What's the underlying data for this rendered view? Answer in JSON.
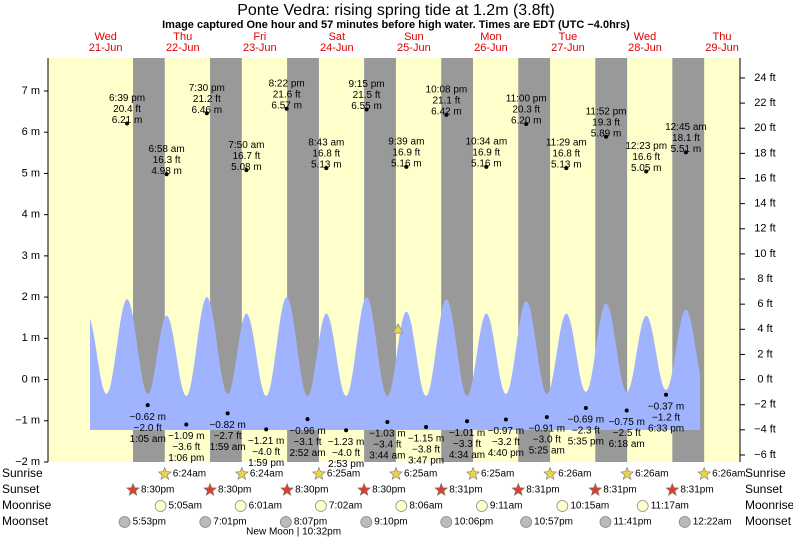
{
  "header": {
    "title": "Ponte Vedra: rising  spring tide at 1.2m (3.8ft)",
    "subtitle": "Image captured One hour and 57 minutes before high water. Times are EDT (UTC −4.0hrs)"
  },
  "chart_data": {
    "type": "tide",
    "ylim": [
      -2,
      7.8
    ],
    "yticks": [
      {
        "value": -2,
        "label": "−2 m"
      },
      {
        "value": -1,
        "label": "−1 m"
      },
      {
        "value": 0,
        "label": "0 m"
      },
      {
        "value": 1,
        "label": "1 m"
      },
      {
        "value": 2,
        "label": "2 m"
      },
      {
        "value": 3,
        "label": "3 m"
      },
      {
        "value": 4,
        "label": "4 m"
      },
      {
        "value": 5,
        "label": "5 m"
      },
      {
        "value": 6,
        "label": "6 m"
      },
      {
        "value": 7,
        "label": "7 m"
      }
    ],
    "y2lim": [
      -6.56,
      25.59
    ],
    "y2ticks": [
      {
        "value": -6,
        "label": "−6 ft"
      },
      {
        "value": -4,
        "label": "−4 ft"
      },
      {
        "value": -2,
        "label": "−2 ft"
      },
      {
        "value": 0,
        "label": "0 ft"
      },
      {
        "value": 2,
        "label": "2 ft"
      },
      {
        "value": 4,
        "label": "4 ft"
      },
      {
        "value": 6,
        "label": "6 ft"
      },
      {
        "value": 8,
        "label": "8 ft"
      },
      {
        "value": 10,
        "label": "10 ft"
      },
      {
        "value": 12,
        "label": "12 ft"
      },
      {
        "value": 14,
        "label": "14 ft"
      },
      {
        "value": 16,
        "label": "16 ft"
      },
      {
        "value": 18,
        "label": "18 ft"
      },
      {
        "value": 20,
        "label": "20 ft"
      },
      {
        "value": 22,
        "label": "22 ft"
      },
      {
        "value": 24,
        "label": "24 ft"
      }
    ],
    "current_level_m": 1.2,
    "row_labels": {
      "sunrise": "Sunrise",
      "sunset": "Sunset",
      "moonrise": "Moonrise",
      "moonset": "Moonset"
    },
    "days": [
      {
        "name": "Wed",
        "date": "21-Jun",
        "sunset": "8:30pm",
        "moonset": "5:53pm",
        "tides": [
          {
            "time": "6:39 pm",
            "ft": {
              "value": 20.4,
              "label": "20.4 ft"
            },
            "m": {
              "value": 6.21,
              "label": "6.21 m"
            },
            "curve": 1.95
          }
        ]
      },
      {
        "name": "Thu",
        "date": "22-Jun",
        "sunrise": "6:24am",
        "sunset": "8:30pm",
        "moonrise": "5:05am",
        "moonset": "7:01pm",
        "tides": [
          {
            "time": "1:05 am",
            "ft": {
              "value": -2.0,
              "label": "−2.0 ft"
            },
            "m": {
              "value": -0.62,
              "label": "−0.62 m"
            },
            "curve": -0.35
          },
          {
            "time": "6:58 am",
            "ft": {
              "value": 16.3,
              "label": "16.3 ft"
            },
            "m": {
              "value": 4.98,
              "label": "4.98 m"
            },
            "curve": 1.55
          },
          {
            "time": "1:06 pm",
            "ft": {
              "value": -3.6,
              "label": "−3.6 ft"
            },
            "m": {
              "value": -1.09,
              "label": "−1.09 m"
            },
            "curve": -0.4
          },
          {
            "time": "7:30 pm",
            "ft": {
              "value": 21.2,
              "label": "21.2 ft"
            },
            "m": {
              "value": 6.46,
              "label": "6.46 m"
            },
            "curve": 2.0
          }
        ]
      },
      {
        "name": "Fri",
        "date": "23-Jun",
        "sunrise": "6:24am",
        "sunset": "8:30pm",
        "moonrise": "6:01am",
        "moonset": "8:07pm",
        "moon_phase": "New Moon | 10:32pm",
        "tides": [
          {
            "time": "1:59 am",
            "ft": {
              "value": -2.7,
              "label": "−2.7 ft"
            },
            "m": {
              "value": -0.82,
              "label": "−0.82 m"
            },
            "curve": -0.35
          },
          {
            "time": "7:50 am",
            "ft": {
              "value": 16.7,
              "label": "16.7 ft"
            },
            "m": {
              "value": 5.08,
              "label": "5.08 m"
            },
            "curve": 1.6
          },
          {
            "time": "1:59 pm",
            "ft": {
              "value": -4.0,
              "label": "−4.0 ft"
            },
            "m": {
              "value": -1.21,
              "label": "−1.21 m"
            },
            "curve": -0.4
          },
          {
            "time": "8:22 pm",
            "ft": {
              "value": 21.6,
              "label": "21.6 ft"
            },
            "m": {
              "value": 6.57,
              "label": "6.57 m"
            },
            "curve": 2.0
          }
        ]
      },
      {
        "name": "Sat",
        "date": "24-Jun",
        "sunrise": "6:25am",
        "sunset": "8:30pm",
        "moonrise": "7:02am",
        "moonset": "9:10pm",
        "tides": [
          {
            "time": "2:52 am",
            "ft": {
              "value": -3.1,
              "label": "−3.1 ft"
            },
            "m": {
              "value": -0.96,
              "label": "−0.96 m"
            },
            "curve": -0.4
          },
          {
            "time": "8:43 am",
            "ft": {
              "value": 16.8,
              "label": "16.8 ft"
            },
            "m": {
              "value": 5.13,
              "label": "5.13 m"
            },
            "curve": 1.6
          },
          {
            "time": "2:53 pm",
            "ft": {
              "value": -4.0,
              "label": "−4.0 ft"
            },
            "m": {
              "value": -1.23,
              "label": "−1.23 m"
            },
            "curve": -0.4
          },
          {
            "time": "9:15 pm",
            "ft": {
              "value": 21.5,
              "label": "21.5 ft"
            },
            "m": {
              "value": 6.55,
              "label": "6.55 m"
            },
            "curve": 2.0
          }
        ]
      },
      {
        "name": "Sun",
        "date": "25-Jun",
        "sunrise": "6:25am",
        "sunset": "8:31pm",
        "moonrise": "8:06am",
        "moonset": "10:06pm",
        "tides": [
          {
            "time": "3:44 am",
            "ft": {
              "value": -3.4,
              "label": "−3.4 ft"
            },
            "m": {
              "value": -1.03,
              "label": "−1.03 m"
            },
            "curve": -0.4
          },
          {
            "time": "9:39 am",
            "ft": {
              "value": 16.9,
              "label": "16.9 ft"
            },
            "m": {
              "value": 5.16,
              "label": "5.16 m"
            },
            "curve": 1.65
          },
          {
            "time": "3:47 pm",
            "ft": {
              "value": -3.8,
              "label": "−3.8 ft"
            },
            "m": {
              "value": -1.15,
              "label": "−1.15 m"
            },
            "curve": -0.4
          },
          {
            "time": "10:08 pm",
            "ft": {
              "value": 21.1,
              "label": "21.1 ft"
            },
            "m": {
              "value": 6.42,
              "label": "6.42 m"
            },
            "curve": 1.95
          }
        ]
      },
      {
        "name": "Mon",
        "date": "26-Jun",
        "sunrise": "6:25am",
        "sunset": "8:31pm",
        "moonrise": "9:11am",
        "moonset": "10:57pm",
        "tides": [
          {
            "time": "4:34 am",
            "ft": {
              "value": -3.3,
              "label": "−3.3 ft"
            },
            "m": {
              "value": -1.01,
              "label": "−1.01 m"
            },
            "curve": -0.4
          },
          {
            "time": "10:34 am",
            "ft": {
              "value": 16.9,
              "label": "16.9 ft"
            },
            "m": {
              "value": 5.16,
              "label": "5.16 m"
            },
            "curve": 1.6
          },
          {
            "time": "4:40 pm",
            "ft": {
              "value": -3.2,
              "label": "−3.2 ft"
            },
            "m": {
              "value": -0.97,
              "label": "−0.97 m"
            },
            "curve": -0.35
          },
          {
            "time": "11:00 pm",
            "ft": {
              "value": 20.3,
              "label": "20.3 ft"
            },
            "m": {
              "value": 6.2,
              "label": "6.20 m"
            },
            "curve": 1.9
          }
        ]
      },
      {
        "name": "Tue",
        "date": "27-Jun",
        "sunrise": "6:26am",
        "sunset": "8:31pm",
        "moonrise": "10:15am",
        "moonset": "11:41pm",
        "tides": [
          {
            "time": "5:25 am",
            "ft": {
              "value": -3.0,
              "label": "−3.0 ft"
            },
            "m": {
              "value": -0.91,
              "label": "−0.91 m"
            },
            "curve": -0.35
          },
          {
            "time": "11:29 am",
            "ft": {
              "value": 16.8,
              "label": "16.8 ft"
            },
            "m": {
              "value": 5.13,
              "label": "5.13 m"
            },
            "curve": 1.6
          },
          {
            "time": "5:35 pm",
            "ft": {
              "value": -2.3,
              "label": "−2.3 ft"
            },
            "m": {
              "value": -0.69,
              "label": "−0.69 m"
            },
            "curve": -0.3
          },
          {
            "time": "11:52 pm",
            "ft": {
              "value": 19.3,
              "label": "19.3 ft"
            },
            "m": {
              "value": 5.89,
              "label": "5.89 m"
            },
            "curve": 1.85
          }
        ]
      },
      {
        "name": "Wed",
        "date": "28-Jun",
        "sunrise": "6:26am",
        "sunset": "8:31pm",
        "moonrise": "11:17am",
        "tides": [
          {
            "time": "6:18 am",
            "ft": {
              "value": -2.5,
              "label": "−2.5 ft"
            },
            "m": {
              "value": -0.75,
              "label": "−0.75 m"
            },
            "curve": -0.3
          },
          {
            "time": "12:23 pm",
            "ft": {
              "value": 16.6,
              "label": "16.6 ft"
            },
            "m": {
              "value": 5.05,
              "label": "5.05 m"
            },
            "curve": 1.55
          },
          {
            "time": "6:33 pm",
            "ft": {
              "value": -1.2,
              "label": "−1.2 ft"
            },
            "m": {
              "value": -0.37,
              "label": "−0.37 m"
            },
            "curve": -0.25
          }
        ]
      },
      {
        "name": "Thu",
        "date": "29-Jun",
        "sunrise": "6:26am",
        "moonset": "12:22am",
        "tides": [
          {
            "time": "12:45 am",
            "ft": {
              "value": 18.1,
              "label": "18.1 ft"
            },
            "m": {
              "value": 5.51,
              "label": "5.51 m"
            },
            "curve": 1.7
          }
        ]
      }
    ]
  }
}
